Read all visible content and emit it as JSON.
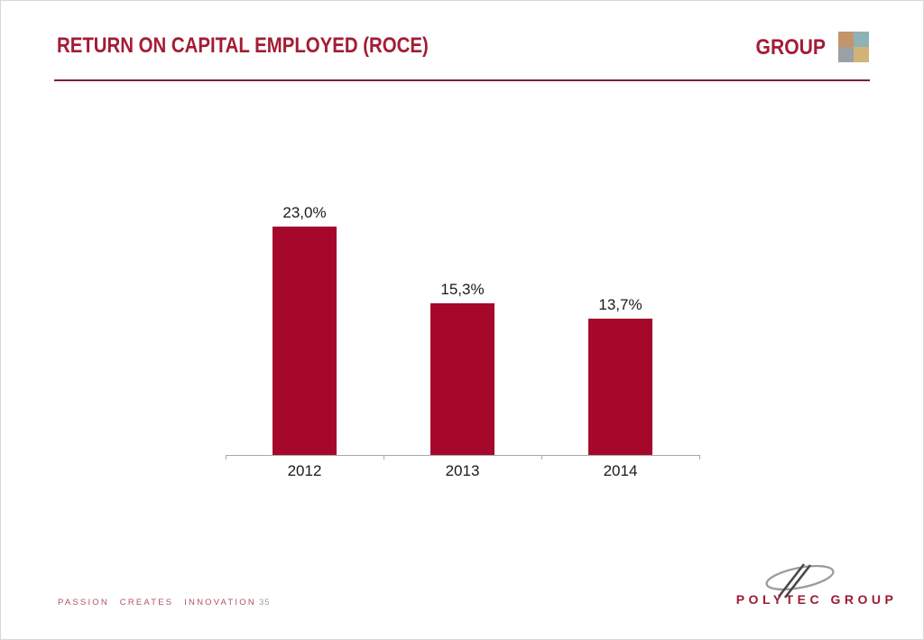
{
  "header": {
    "title": "RETURN ON CAPITAL EMPLOYED (ROCE)",
    "brand": "GROUP"
  },
  "colors": {
    "accent_red": "#a5082b",
    "title_red": "#a31c35",
    "axis_gray": "#a8a8a8",
    "label_black": "#1a1a1a",
    "footer_red": "#b2525f",
    "page_number_gray": "#9d9d9d",
    "logo_squares": [
      "#c4946c",
      "#8fb3b5",
      "#9aa0a6",
      "#d2b377"
    ]
  },
  "chart_data": {
    "type": "bar",
    "title": "RETURN ON CAPITAL EMPLOYED (ROCE)",
    "categories": [
      "2012",
      "2013",
      "2014"
    ],
    "values": [
      23.0,
      15.3,
      13.7
    ],
    "value_labels": [
      "23,0%",
      "15,3%",
      "13,7%"
    ],
    "xlabel": "",
    "ylabel": "",
    "unit": "%",
    "ylim": [
      0,
      25
    ],
    "grid": false,
    "legend": false,
    "bar_color": "#a5082b",
    "axis_ticks_x": 4
  },
  "footer": {
    "tagline": "PASSION CREATES INNOVATION",
    "page_number": "35",
    "brand": "POLYTEC GROUP"
  }
}
